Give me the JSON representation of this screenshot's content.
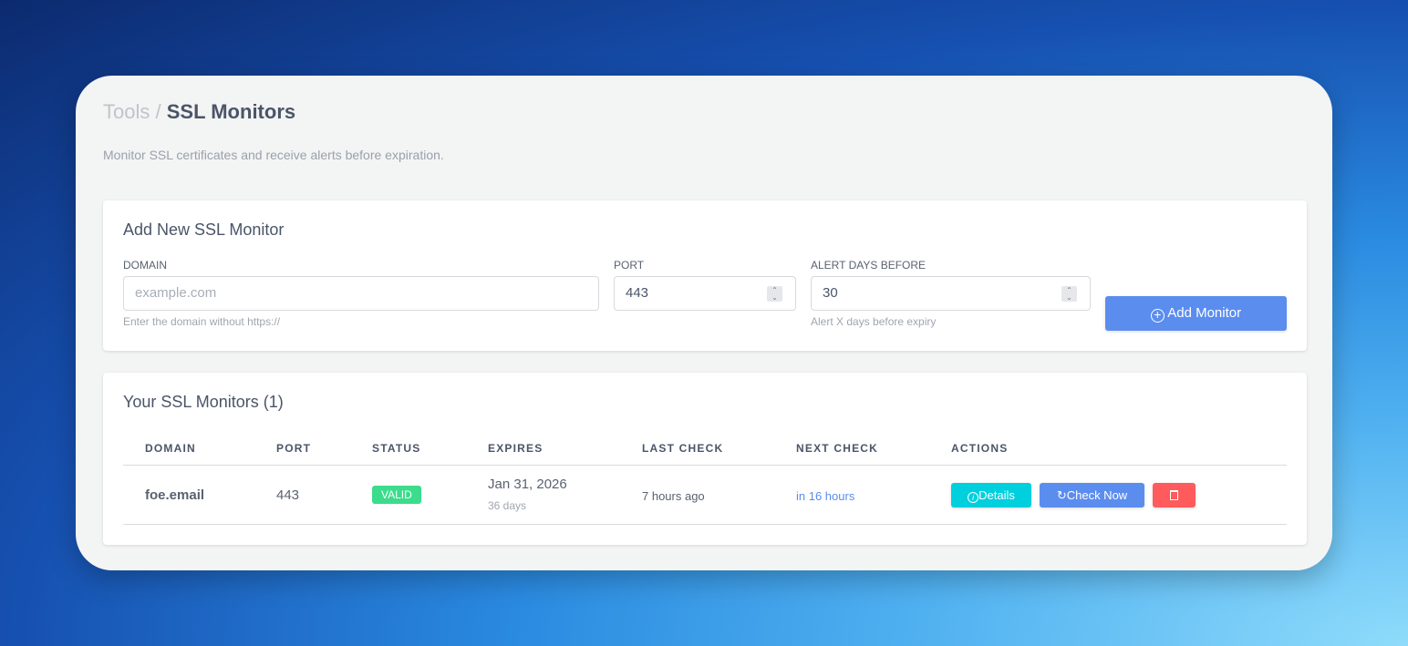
{
  "breadcrumb": {
    "parent": "Tools",
    "separator": "/",
    "current": "SSL Monitors"
  },
  "subtitle": "Monitor SSL certificates and receive alerts before expiration.",
  "add_form": {
    "title": "Add New SSL Monitor",
    "domain": {
      "label": "DOMAIN",
      "placeholder": "example.com",
      "help": "Enter the domain without https://"
    },
    "port": {
      "label": "PORT",
      "value": "443"
    },
    "alert_days": {
      "label": "ALERT DAYS BEFORE",
      "value": "30",
      "help": "Alert X days before expiry"
    },
    "submit_label": "Add Monitor"
  },
  "monitors": {
    "title": "Your SSL Monitors (1)",
    "columns": [
      "DOMAIN",
      "PORT",
      "STATUS",
      "EXPIRES",
      "LAST CHECK",
      "NEXT CHECK",
      "ACTIONS"
    ],
    "rows": [
      {
        "domain": "foe.email",
        "port": "443",
        "status": "VALID",
        "expires": "Jan 31, 2026",
        "expires_in": "36 days",
        "last_check": "7 hours ago",
        "next_check": "in 16 hours",
        "details_label": "Details",
        "check_label": "Check Now"
      }
    ]
  },
  "colors": {
    "primary": "#5b8def",
    "success": "#3bdc8c",
    "info": "#00cfdd",
    "danger": "#ff5b5c"
  }
}
